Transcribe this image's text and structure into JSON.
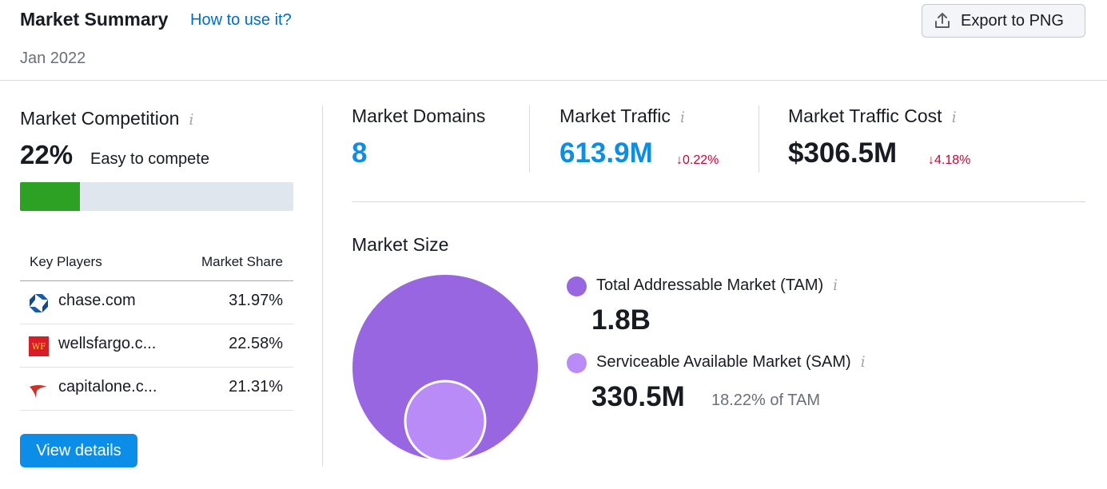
{
  "header": {
    "title": "Market Summary",
    "how_to_link": "How to use it?",
    "date": "Jan 2022",
    "export_label": "Export to PNG"
  },
  "competition": {
    "title": "Market Competition",
    "info_icon": "i",
    "value": "22%",
    "label": "Easy to compete",
    "bar_fraction": 0.22,
    "bar_color": "#2ca123"
  },
  "key_players": {
    "col_player": "Key Players",
    "col_share": "Market Share",
    "rows": [
      {
        "domain": "chase.com",
        "share": "31.97%",
        "icon": "chase-logo-icon"
      },
      {
        "domain": "wellsfargo.c...",
        "share": "22.58%",
        "icon": "wellsfargo-logo-icon",
        "icon_text": "WF"
      },
      {
        "domain": "capitalone.c...",
        "share": "21.31%",
        "icon": "capitalone-logo-icon"
      }
    ],
    "view_details": "View details"
  },
  "metrics": {
    "domains": {
      "label": "Market Domains",
      "value": "8"
    },
    "traffic": {
      "label": "Market Traffic",
      "info_icon": "i",
      "value": "613.9M",
      "change": "↓0.22%"
    },
    "cost": {
      "label": "Market Traffic Cost",
      "info_icon": "i",
      "value": "$306.5M",
      "change": "↓4.18%"
    }
  },
  "market_size": {
    "title": "Market Size",
    "tam": {
      "label": "Total Addressable Market (TAM)",
      "info_icon": "i",
      "value": "1.8B",
      "color": "#9966e1"
    },
    "sam": {
      "label": "Serviceable Available Market (SAM)",
      "info_icon": "i",
      "value": "330.5M",
      "sub": "18.22% of TAM",
      "color": "#b98bf7"
    }
  },
  "colors": {
    "accent_blue": "#0c8ee8",
    "link_blue": "#006dca",
    "negative_red": "#d1002f"
  }
}
